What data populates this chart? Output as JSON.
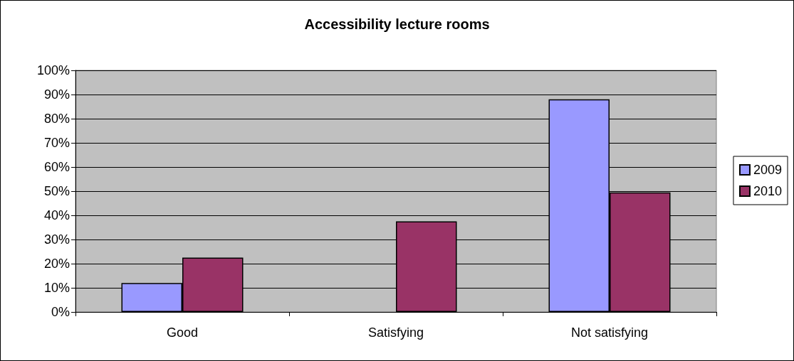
{
  "chart_data": {
    "type": "bar",
    "title": "Accessibility lecture rooms",
    "categories": [
      "Good",
      "Satisfying",
      "Not satisfying"
    ],
    "series": [
      {
        "name": "2009",
        "color": "#9999ff",
        "values": [
          12,
          null,
          88
        ]
      },
      {
        "name": "2010",
        "color": "#993366",
        "values": [
          22.5,
          37.5,
          49.5
        ]
      }
    ],
    "ylim": [
      0,
      100
    ],
    "yticks": [
      {
        "value": 0,
        "label": "0%"
      },
      {
        "value": 10,
        "label": "10%"
      },
      {
        "value": 20,
        "label": "20%"
      },
      {
        "value": 30,
        "label": "30%"
      },
      {
        "value": 40,
        "label": "40%"
      },
      {
        "value": 50,
        "label": "50%"
      },
      {
        "value": 60,
        "label": "60%"
      },
      {
        "value": 70,
        "label": "70%"
      },
      {
        "value": 80,
        "label": "80%"
      },
      {
        "value": 90,
        "label": "90%"
      },
      {
        "value": 100,
        "label": "100%"
      }
    ],
    "grid": "y",
    "legend": "right"
  }
}
